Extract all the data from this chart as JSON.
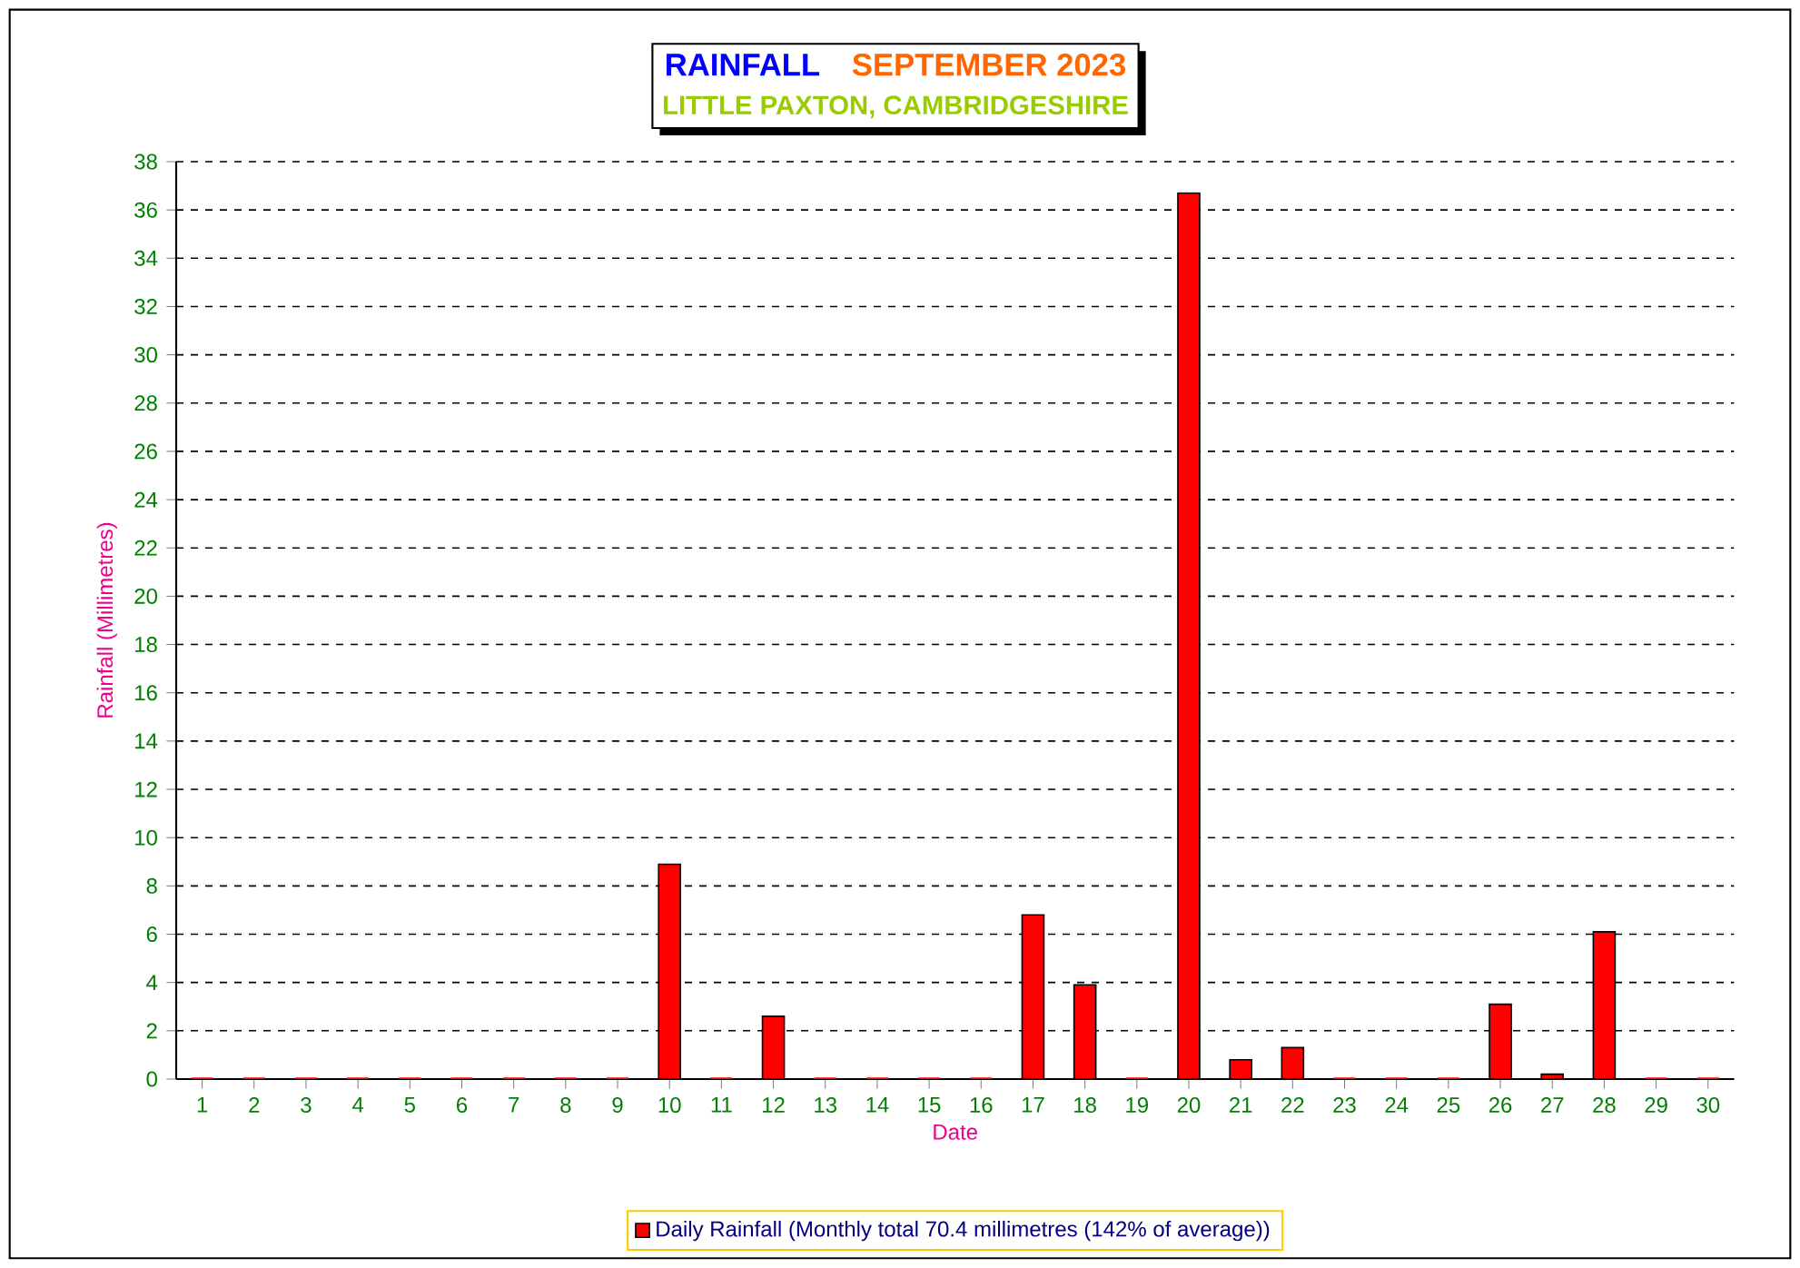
{
  "chart_data": {
    "type": "bar",
    "title": "RAINFALL",
    "subtitle": "SEPTEMBER 2023",
    "annotations": [
      "LITTLE PAXTON, CAMBRIDGESHIRE"
    ],
    "xlabel": "Date",
    "ylabel": "Rainfall  (Millimetres)",
    "categories": [
      "1",
      "2",
      "3",
      "4",
      "5",
      "6",
      "7",
      "8",
      "9",
      "10",
      "11",
      "12",
      "13",
      "14",
      "15",
      "16",
      "17",
      "18",
      "19",
      "20",
      "21",
      "22",
      "23",
      "24",
      "25",
      "26",
      "27",
      "28",
      "29",
      "30"
    ],
    "series": [
      {
        "name": "Daily Rainfall (Monthly total 70.4 millimetres (142% of average))",
        "color": "#ff0000",
        "values": [
          0,
          0,
          0,
          0,
          0,
          0,
          0,
          0,
          0,
          8.9,
          0,
          2.6,
          0,
          0,
          0,
          0,
          6.8,
          3.9,
          0,
          36.7,
          0.8,
          1.3,
          0,
          0,
          0,
          3.1,
          0.2,
          6.1,
          0,
          0
        ]
      }
    ],
    "ylim": [
      0,
      38
    ],
    "yticks": [
      0,
      2,
      4,
      6,
      8,
      10,
      12,
      14,
      16,
      18,
      20,
      22,
      24,
      26,
      28,
      30,
      32,
      34,
      36,
      38
    ],
    "grid": "y",
    "legend": "bottom"
  }
}
